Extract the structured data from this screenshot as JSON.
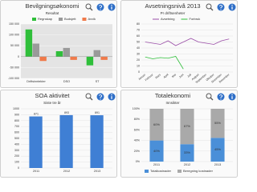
{
  "chart_data": [
    {
      "type": "bar",
      "title": "Bevilgningsøkonomi",
      "subtitle": "Resultat",
      "categories": [
        "Driftsinntekter",
        "DSO",
        "ST"
      ],
      "series": [
        {
          "name": "Regnskap",
          "color": "#2fbf3a",
          "values": [
            125000,
            25000,
            -40000
          ]
        },
        {
          "name": "Budsjett",
          "color": "#9a9a9a",
          "values": [
            60000,
            40000,
            30000
          ]
        },
        {
          "name": "Avvik",
          "color": "#f07a4a",
          "values": [
            -20000,
            -15000,
            -15000
          ]
        }
      ],
      "ylim": [
        -100000,
        150000
      ],
      "yticks": [
        {
          "value": -100000,
          "label": "-100 000"
        },
        {
          "value": -50000,
          "label": "-50 000"
        },
        0,
        {
          "value": 50000,
          "label": "50 000"
        },
        {
          "value": 100000,
          "label": "100 000"
        },
        {
          "value": 150000,
          "label": "150 000"
        }
      ],
      "grid": true,
      "plot_background": "#e4e4e4"
    },
    {
      "type": "line",
      "title": "Avsetningsnivå 2013",
      "subtitle": "Pr driftsenheter",
      "categories": [
        "Januar",
        "Februar",
        "Mars",
        "April",
        "Mai",
        "Juni",
        "Juli",
        "August",
        "September",
        "Oktober",
        "November",
        "Desember"
      ],
      "series": [
        {
          "name": "Avsetning",
          "color": "#9b4fa8",
          "values": [
            50,
            48,
            46,
            52,
            44,
            50,
            56,
            50,
            48,
            46,
            52,
            55
          ]
        },
        {
          "name": "Forbruk",
          "color": "#2fbf3a",
          "values": [
            25,
            22,
            24,
            23,
            26,
            5,
            null,
            null,
            null,
            null,
            null,
            null
          ]
        }
      ],
      "ylim": [
        0,
        80
      ],
      "yticks": [
        0,
        10,
        20,
        30,
        40,
        50,
        60,
        70,
        80
      ],
      "grid": true
    },
    {
      "type": "bar",
      "title": "SOA aktivitet",
      "subtitle": "Siste tre år",
      "categories": [
        "2011",
        "2012",
        "2013"
      ],
      "values": [
        871,
        893,
        891
      ],
      "color": "#3f7fd4",
      "show_values": true,
      "ylim": [
        0,
        1000
      ],
      "yticks": [
        0,
        100,
        200,
        300,
        400,
        500,
        600,
        700,
        800,
        900,
        1000
      ],
      "grid": true
    },
    {
      "type": "stacked_bar",
      "title": "Totalekonomi",
      "subtitle": "Innsikter",
      "categories": [
        "2011",
        "2012",
        "2013"
      ],
      "series": [
        {
          "name": "Totalkostnader",
          "color": "#4a8fd8",
          "values": [
            40,
            33,
            45
          ],
          "value_labels": [
            "40%",
            "33%",
            "45%"
          ]
        },
        {
          "name": "Beregning kostnader",
          "color": "#a9a9a9",
          "values": [
            60,
            67,
            55
          ],
          "value_labels": [
            "60%",
            "67%",
            "55%"
          ]
        }
      ],
      "ylim": [
        0,
        100
      ],
      "yticks": [
        {
          "value": 0,
          "label": "0%"
        },
        {
          "value": 20,
          "label": "20%"
        },
        {
          "value": 40,
          "label": "40%"
        },
        {
          "value": 60,
          "label": "60%"
        },
        {
          "value": 80,
          "label": "80%"
        },
        {
          "value": 100,
          "label": "100%"
        }
      ],
      "grid": true
    }
  ]
}
